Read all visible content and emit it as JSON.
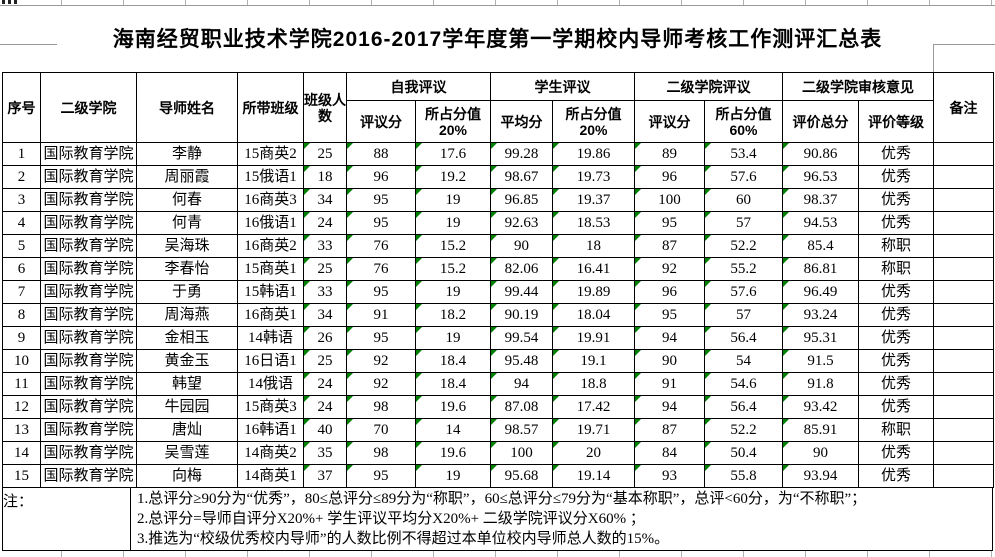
{
  "title": "海南经贸职业技术学院2016-2017学年度第一学期校内导师考核工作测评汇总表",
  "table": {
    "headers": {
      "index": "序号",
      "college": "二级学院",
      "mentor": "导师姓名",
      "class": "所带班级",
      "class_size": "班级人数",
      "self_group": "自我评议",
      "self_score": "评议分",
      "self_weight": "所占分值20%",
      "student_group": "学生评议",
      "student_avg": "平均分",
      "student_weight": "所占分值20%",
      "college_group": "二级学院评议",
      "college_score": "评议分",
      "college_weight": "所占分值60%",
      "review_group": "二级学院审核意见",
      "total_score": "评价总分",
      "grade": "评价等级",
      "remark": "备注"
    },
    "error_indicator_columns": [
      4,
      5,
      6,
      7,
      8,
      9,
      10,
      11
    ],
    "rows": [
      [
        "1",
        "国际教育学院",
        "李静",
        "15商英2",
        "25",
        "88",
        "17.6",
        "99.28",
        "19.86",
        "89",
        "53.4",
        "90.86",
        "优秀",
        ""
      ],
      [
        "2",
        "国际教育学院",
        "周丽霞",
        "15俄语1",
        "18",
        "96",
        "19.2",
        "98.67",
        "19.73",
        "96",
        "57.6",
        "96.53",
        "优秀",
        ""
      ],
      [
        "3",
        "国际教育学院",
        "何春",
        "16商英3",
        "34",
        "95",
        "19",
        "96.85",
        "19.37",
        "100",
        "60",
        "98.37",
        "优秀",
        ""
      ],
      [
        "4",
        "国际教育学院",
        "何青",
        "16俄语1",
        "24",
        "95",
        "19",
        "92.63",
        "18.53",
        "95",
        "57",
        "94.53",
        "优秀",
        ""
      ],
      [
        "5",
        "国际教育学院",
        "吴海珠",
        "16商英2",
        "33",
        "76",
        "15.2",
        "90",
        "18",
        "87",
        "52.2",
        "85.4",
        "称职",
        ""
      ],
      [
        "6",
        "国际教育学院",
        "李春怡",
        "15商英1",
        "25",
        "76",
        "15.2",
        "82.06",
        "16.41",
        "92",
        "55.2",
        "86.81",
        "称职",
        ""
      ],
      [
        "7",
        "国际教育学院",
        "于勇",
        "15韩语1",
        "33",
        "95",
        "19",
        "99.44",
        "19.89",
        "96",
        "57.6",
        "96.49",
        "优秀",
        ""
      ],
      [
        "8",
        "国际教育学院",
        "周海燕",
        "16商英1",
        "34",
        "91",
        "18.2",
        "90.19",
        "18.04",
        "95",
        "57",
        "93.24",
        "优秀",
        ""
      ],
      [
        "9",
        "国际教育学院",
        "金相玉",
        "14韩语",
        "26",
        "95",
        "19",
        "99.54",
        "19.91",
        "94",
        "56.4",
        "95.31",
        "优秀",
        ""
      ],
      [
        "10",
        "国际教育学院",
        "黄金玉",
        "16日语1",
        "25",
        "92",
        "18.4",
        "95.48",
        "19.1",
        "90",
        "54",
        "91.5",
        "优秀",
        ""
      ],
      [
        "11",
        "国际教育学院",
        "韩望",
        "14俄语",
        "24",
        "92",
        "18.4",
        "94",
        "18.8",
        "91",
        "54.6",
        "91.8",
        "优秀",
        ""
      ],
      [
        "12",
        "国际教育学院",
        "牛园园",
        "15商英3",
        "24",
        "98",
        "19.6",
        "87.08",
        "17.42",
        "94",
        "56.4",
        "93.42",
        "优秀",
        ""
      ],
      [
        "13",
        "国际教育学院",
        "唐灿",
        "16韩语1",
        "40",
        "70",
        "14",
        "98.57",
        "19.71",
        "87",
        "52.2",
        "85.91",
        "称职",
        ""
      ],
      [
        "14",
        "国际教育学院",
        "吴雪莲",
        "14商英2",
        "35",
        "98",
        "19.6",
        "100",
        "20",
        "84",
        "50.4",
        "90",
        "优秀",
        ""
      ],
      [
        "15",
        "国际教育学院",
        "向梅",
        "14商英1",
        "37",
        "95",
        "19",
        "95.68",
        "19.14",
        "93",
        "55.8",
        "93.94",
        "优秀",
        ""
      ]
    ]
  },
  "notes": {
    "label": "注：",
    "items": [
      "1.总评分≥90分为“优秀”，80≤总评分≤89分为“称职”，60≤总评分≤79分为“基本称职”，总评<60分，为“不称职”；",
      "2.总评分=导师自评分X20%+ 学生评议平均分X20%+ 二级学院评议分X60% ；",
      "3.推选为“校级优秀校内导师”的人数比例不得超过本单位校内导师总人数的15%。"
    ]
  },
  "colors": {
    "grid": "#000000",
    "faint_grid": "#b0b0b0",
    "error_indicator": "#008000"
  }
}
